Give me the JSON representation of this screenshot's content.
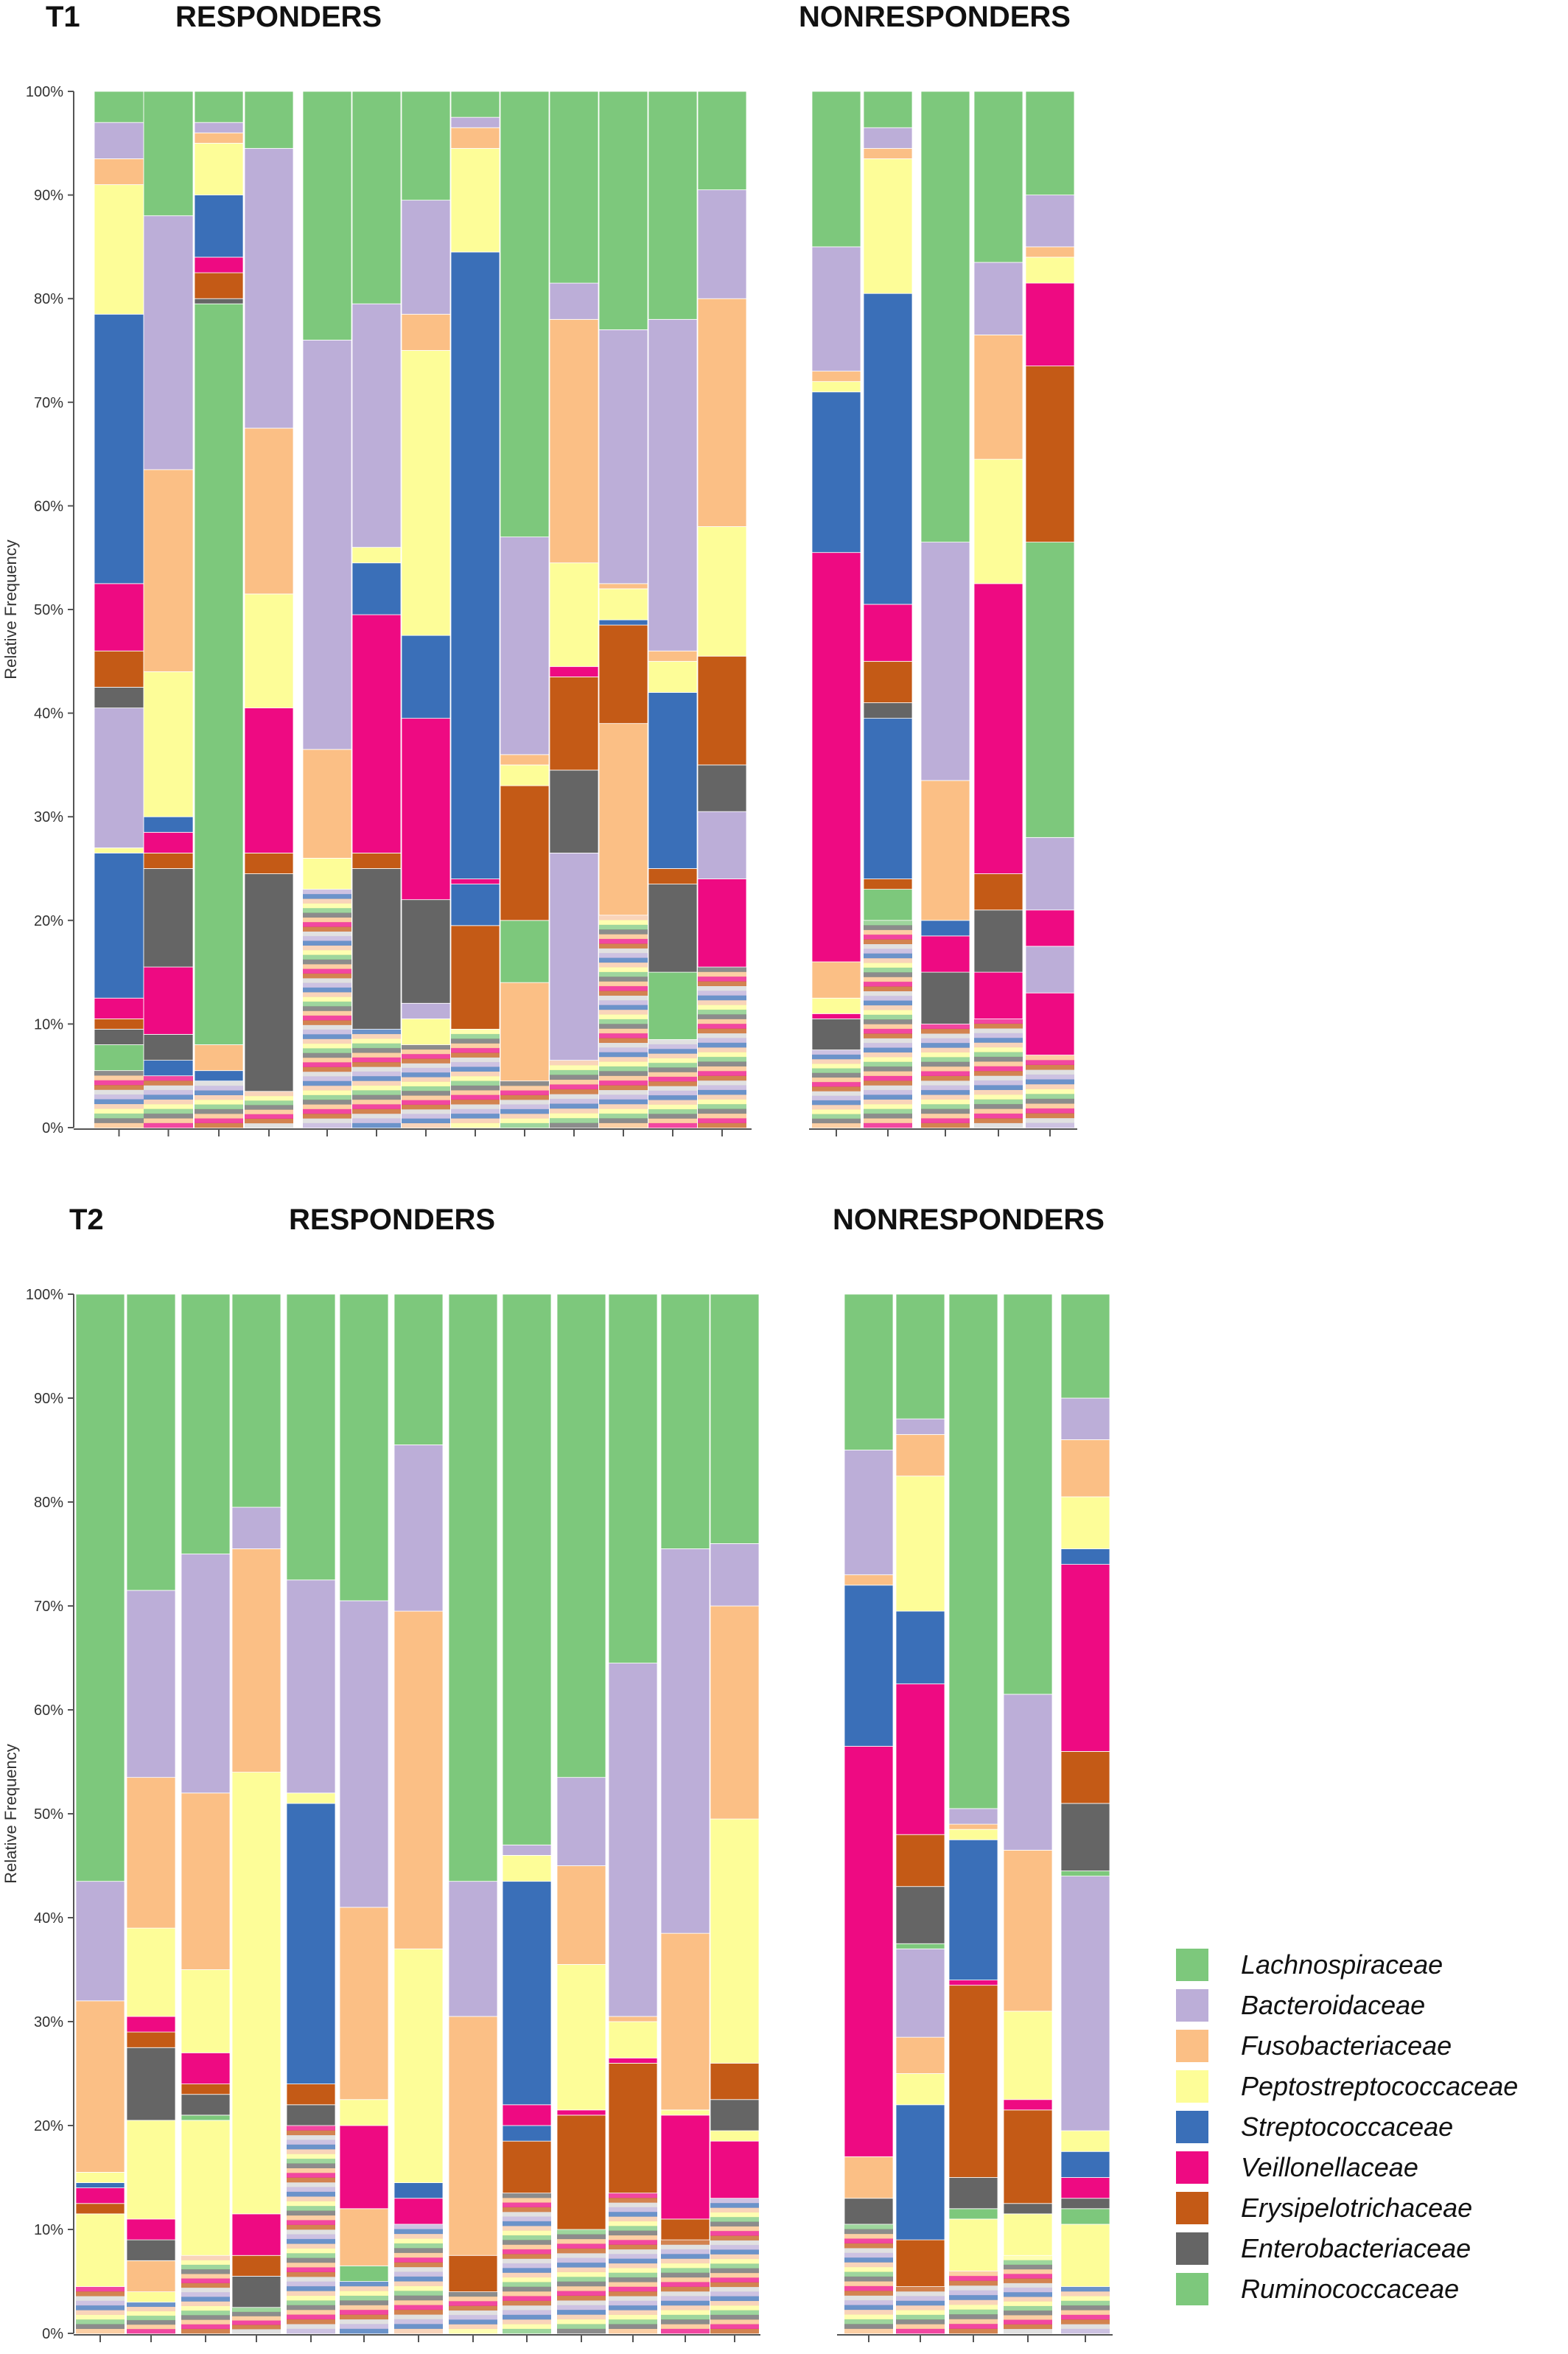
{
  "figure": {
    "panels": [
      {
        "id": "T1",
        "time_label": "T1",
        "group_labels": [
          "RESPONDERS",
          "NONRESPONDERS"
        ],
        "ylabel": "Relative Frequency",
        "yticks": [
          "0%",
          "10%",
          "20%",
          "30%",
          "40%",
          "50%",
          "60%",
          "70%",
          "80%",
          "90%",
          "100%"
        ]
      },
      {
        "id": "T2",
        "time_label": "T2",
        "group_labels": [
          "RESPONDERS",
          "NONRESPONDERS"
        ],
        "ylabel": "Relative Frequency",
        "yticks": [
          "0%",
          "10%",
          "20%",
          "30%",
          "40%",
          "50%",
          "60%",
          "70%",
          "80%",
          "90%",
          "100%"
        ]
      }
    ]
  },
  "legend": {
    "items": [
      {
        "label": "Lachnospiraceae",
        "color": "#7dc87c"
      },
      {
        "label": "Bacteroidaceae",
        "color": "#bcaed8"
      },
      {
        "label": "Fusobacteriaceae",
        "color": "#fbbf85"
      },
      {
        "label": "Peptostreptococcaceae",
        "color": "#fdfd98"
      },
      {
        "label": "Streptococcaceae",
        "color": "#3a6fb8"
      },
      {
        "label": "Veillonellaceae",
        "color": "#ee0a82"
      },
      {
        "label": "Erysipelotrichaceae",
        "color": "#c45a16"
      },
      {
        "label": "Enterobacteriaceae",
        "color": "#656565"
      },
      {
        "label": "Ruminococcaceae",
        "color": "#7dc87c"
      }
    ]
  },
  "chart_data": [
    {
      "type": "bar",
      "stacked": true,
      "timepoint": "T1",
      "ylabel": "Relative Frequency",
      "ylim": [
        0,
        100
      ],
      "series_order": [
        "Lachnospiraceae",
        "Bacteroidaceae",
        "Fusobacteriaceae",
        "Peptostreptococcaceae",
        "Streptococcaceae",
        "Veillonellaceae",
        "Erysipelotrichaceae",
        "Enterobacteriaceae",
        "Ruminococcaceae"
      ],
      "groups": [
        {
          "name": "RESPONDERS",
          "samples": [
            {
              "Ruminococcaceae": 2.5,
              "Enterobacteriaceae": 1.5,
              "Erysipelotrichaceae": 1,
              "Veillonellaceae": 2,
              "Streptococcaceae": 14,
              "Peptostreptococcaceae": 0.5,
              "Bacteroidaceae": 13.5,
              "Enterobacteriaceae_2": 2,
              "Erysipelotrichaceae_2": 3.5,
              "Veillonellaceae_2": 6.5,
              "Streptococcaceae_2": 26,
              "Peptostreptococcaceae_2": 12.5,
              "Fusobacteriaceae": 2.5,
              "Bacteroidaceae_2": 3.5,
              "Lachnospiraceae": 3
            },
            {
              "Streptococcaceae": 1.5,
              "Enterobacteriaceae": 2.5,
              "Veillonellaceae": 6.5,
              "Enterobacteriaceae_2": 9.5,
              "Erysipelotrichaceae": 1.5,
              "Veillonellaceae_2": 2,
              "Streptococcaceae_2": 1.5,
              "Peptostreptococcaceae": 14,
              "Fusobacteriaceae": 19.5,
              "Bacteroidaceae": 24.5,
              "Lachnospiraceae": 12
            },
            {
              "Streptococcaceae": 1,
              "Fusobacteriaceae": 2.5,
              "Lachnospiraceae": 71.5,
              "Enterobacteriaceae": 0.5,
              "Erysipelotrichaceae": 2.5,
              "Veillonellaceae": 1.5,
              "Streptococcaceae_2": 6,
              "Peptostreptococcaceae": 5,
              "Fusobacteriaceae_2": 1,
              "Bacteroidaceae": 1,
              "Lachnospiraceae_2": 3
            },
            {
              "Enterobacteriaceae": 21,
              "Erysipelotrichaceae": 2,
              "Veillonellaceae": 14,
              "Peptostreptococcaceae": 11,
              "Fusobacteriaceae": 16,
              "Bacteroidaceae": 27,
              "Lachnospiraceae": 5.5
            },
            {
              "Peptostreptococcaceae": 3,
              "Fusobacteriaceae": 10.5,
              "Bacteroidaceae": 39.5,
              "Lachnospiraceae": 24
            },
            {
              "Enterobacteriaceae": 15.5,
              "Erysipelotrichaceae": 1.5,
              "Veillonellaceae": 23,
              "Streptococcaceae": 5,
              "Peptostreptococcaceae": 1.5,
              "Bacteroidaceae": 23.5,
              "Lachnospiraceae": 20.5
            },
            {
              "Peptostreptococcaceae": 2.5,
              "Bacteroidaceae": 1.5,
              "Enterobacteriaceae": 10,
              "Veillonellaceae": 17.5,
              "Streptococcaceae": 8,
              "Peptostreptococcaceae_2": 27.5,
              "Fusobacteriaceae": 3.5,
              "Bacteroidaceae_2": 11,
              "Lachnospiraceae": 10.5
            },
            {
              "Erysipelotrichaceae": 10,
              "Streptococcaceae": 4,
              "Veillonellaceae": 0.5,
              "Streptococcaceae_2": 60.5,
              "Peptostreptococcaceae": 10,
              "Fusobacteriaceae": 2,
              "Bacteroidaceae": 1,
              "Lachnospiraceae": 2.5
            },
            {
              "Fusobacteriaceae": 9.5,
              "Ruminococcaceae": 6,
              "Erysipelotrichaceae": 13,
              "Peptostreptococcaceae": 2,
              "Fusobacteriaceae_2": 1,
              "Bacteroidaceae": 21,
              "Lachnospiraceae": 43
            },
            {
              "Bacteroidaceae": 20,
              "Enterobacteriaceae": 8,
              "Erysipelotrichaceae": 9,
              "Veillonellaceae": 1,
              "Peptostreptococcaceae": 10,
              "Fusobacteriaceae": 23.5,
              "Bacteroidaceae_2": 3.5,
              "Lachnospiraceae": 18.5
            },
            {
              "Fusobacteriaceae": 18.5,
              "Erysipelotrichaceae": 9.5,
              "Streptococcaceae": 0.5,
              "Peptostreptococcaceae": 3,
              "Fusobacteriaceae_2": 0.5,
              "Bacteroidaceae": 24.5,
              "Lachnospiraceae": 23
            },
            {
              "Ruminococcaceae": 6.5,
              "Enterobacteriaceae": 8.5,
              "Erysipelotrichaceae": 1.5,
              "Streptococcaceae": 17,
              "Peptostreptococcaceae": 3,
              "Fusobacteriaceae": 1,
              "Bacteroidaceae": 32,
              "Lachnospiraceae": 22
            },
            {
              "Veillonellaceae": 8.5,
              "Bacteroidaceae": 6.5,
              "Enterobacteriaceae": 4.5,
              "Erysipelotrichaceae": 10.5,
              "Peptostreptococcaceae": 12.5,
              "Fusobacteriaceae": 22,
              "Bacteroidaceae_2": 10.5,
              "Lachnospiraceae": 9.5
            }
          ]
        },
        {
          "name": "NONRESPONDERS",
          "samples": [
            {
              "Enterobacteriaceae": 3,
              "Veillonellaceae": 0.5,
              "Peptostreptococcaceae": 1.5,
              "Fusobacteriaceae": 3.5,
              "Veillonellaceae_2": 39.5,
              "Streptococcaceae": 15.5,
              "Peptostreptococcaceae_2": 1,
              "Fusobacteriaceae_2": 1,
              "Bacteroidaceae": 12,
              "Lachnospiraceae": 15
            },
            {
              "Ruminococcaceae": 3,
              "Erysipelotrichaceae": 1,
              "Streptococcaceae": 15.5,
              "Enterobacteriaceae": 1.5,
              "Erysipelotrichaceae_2": 4,
              "Veillonellaceae": 5.5,
              "Streptococcaceae_2": 30,
              "Peptostreptococcaceae": 13,
              "Fusobacteriaceae": 1,
              "Bacteroidaceae": 2,
              "Lachnospiraceae": 3.5
            },
            {
              "Enterobacteriaceae": 5,
              "Veillonellaceae": 3.5,
              "Streptococcaceae": 1.5,
              "Fusobacteriaceae": 13.5,
              "Bacteroidaceae": 23,
              "Lachnospiraceae": 43.5
            },
            {
              "Veillonellaceae": 4.5,
              "Enterobacteriaceae": 6,
              "Erysipelotrichaceae": 3.5,
              "Veillonellaceae_2": 28,
              "Peptostreptococcaceae": 12,
              "Fusobacteriaceae": 12,
              "Bacteroidaceae": 7,
              "Lachnospiraceae": 16.5
            },
            {
              "Veillonellaceae": 6,
              "Bacteroidaceae": 4.5,
              "Veillonellaceae_2": 3.5,
              "Bacteroidaceae_2": 7,
              "Ruminococcaceae": 28.5,
              "Erysipelotrichaceae": 17,
              "Veillonellaceae_2b": 8,
              "Peptostreptococcaceae": 2.5,
              "Fusobacteriaceae": 1,
              "Bacteroidaceae_3": 5,
              "Lachnospiraceae": 10
            }
          ]
        }
      ]
    },
    {
      "type": "bar",
      "stacked": true,
      "timepoint": "T2",
      "ylabel": "Relative Frequency",
      "ylim": [
        0,
        100
      ],
      "series_order": [
        "Lachnospiraceae",
        "Bacteroidaceae",
        "Fusobacteriaceae",
        "Peptostreptococcaceae",
        "Streptococcaceae",
        "Veillonellaceae",
        "Erysipelotrichaceae",
        "Enterobacteriaceae",
        "Ruminococcaceae"
      ],
      "groups": [
        {
          "name": "RESPONDERS",
          "samples": [
            {
              "Peptostreptococcaceae": 7,
              "Erysipelotrichaceae": 1,
              "Veillonellaceae": 1.5,
              "Streptococcaceae": 0.5,
              "Peptostreptococcaceae_2": 1,
              "Fusobacteriaceae": 16.5,
              "Bacteroidaceae": 11.5,
              "Lachnospiraceae": 56.5
            },
            {
              "Peptostreptococcaceae": 1,
              "Fusobacteriaceae": 3,
              "Enterobacteriaceae": 2,
              "Veillonellaceae": 2,
              "Peptostreptococcaceae_2": 9.5,
              "Enterobacteriaceae_2": 7,
              "Erysipelotrichaceae": 1.5,
              "Veillonellaceae_2": 1.5,
              "Peptostreptococcaceae_2b": 8.5,
              "Fusobacteriaceae_2": 14.5,
              "Bacteroidaceae": 18,
              "Lachnospiraceae": 28.5
            },
            {
              "Peptostreptococcaceae": 13,
              "Ruminococcaceae": 0.5,
              "Enterobacteriaceae": 2,
              "Erysipelotrichaceae": 1,
              "Veillonellaceae": 3,
              "Peptostreptococcaceae_2": 8,
              "Fusobacteriaceae": 17,
              "Bacteroidaceae": 23,
              "Lachnospiraceae": 25
            },
            {
              "Enterobacteriaceae": 3,
              "Erysipelotrichaceae": 2,
              "Veillonellaceae": 4,
              "Peptostreptococcaceae": 42.5,
              "Fusobacteriaceae": 21.5,
              "Bacteroidaceae": 4,
              "Lachnospiraceae": 20.5
            },
            {
              "Enterobacteriaceae": 2,
              "Erysipelotrichaceae": 2,
              "Streptococcaceae": 27,
              "Peptostreptococcaceae": 1,
              "Bacteroidaceae": 20.5,
              "Lachnospiraceae": 27.5
            },
            {
              "Ruminococcaceae": 1.5,
              "Fusobacteriaceae": 5.5,
              "Veillonellaceae": 8,
              "Peptostreptococcaceae": 2.5,
              "Fusobacteriaceae_2": 18.5,
              "Bacteroidaceae": 29.5,
              "Lachnospiraceae": 29.5
            },
            {
              "Veillonellaceae": 2.5,
              "Streptococcaceae": 1.5,
              "Peptostreptococcaceae": 22.5,
              "Fusobacteriaceae": 32.5,
              "Bacteroidaceae": 16,
              "Lachnospiraceae": 14.5
            },
            {
              "Erysipelotrichaceae": 3.5,
              "Fusobacteriaceae": 23,
              "Bacteroidaceae": 13,
              "Lachnospiraceae": 56.5
            },
            {
              "Erysipelotrichaceae": 5,
              "Streptococcaceae": 1.5,
              "Veillonellaceae": 2,
              "Streptococcaceae_2": 21.5,
              "Peptostreptococcaceae": 2.5,
              "Bacteroidaceae": 1,
              "Lachnospiraceae": 53
            },
            {
              "Erysipelotrichaceae": 11,
              "Veillonellaceae": 0.5,
              "Peptostreptococcaceae": 14,
              "Fusobacteriaceae": 9.5,
              "Bacteroidaceae": 8.5,
              "Lachnospiraceae": 46.5
            },
            {
              "Erysipelotrichaceae": 12.5,
              "Veillonellaceae": 0.5,
              "Peptostreptococcaceae": 3.5,
              "Fusobacteriaceae": 0.5,
              "Bacteroidaceae": 34,
              "Lachnospiraceae": 35.5
            },
            {
              "Erysipelotrichaceae": 2,
              "Veillonellaceae": 10,
              "Peptostreptococcaceae": 0.5,
              "Fusobacteriaceae": 17,
              "Bacteroidaceae": 37,
              "Lachnospiraceae": 24.5
            },
            {
              "Veillonellaceae": 5.5,
              "Peptostreptococcaceae": 1,
              "Enterobacteriaceae": 3,
              "Erysipelotrichaceae": 3.5,
              "Peptostreptococcaceae_2": 23.5,
              "Fusobacteriaceae": 20.5,
              "Bacteroidaceae": 6,
              "Lachnospiraceae": 24
            }
          ]
        },
        {
          "name": "NONRESPONDERS",
          "samples": [
            {
              "Enterobacteriaceae": 2.5,
              "Fusobacteriaceae": 4,
              "Veillonellaceae": 39.5,
              "Streptococcaceae": 15.5,
              "Fusobacteriaceae_2": 1,
              "Bacteroidaceae": 12,
              "Lachnospiraceae": 15
            },
            {
              "Erysipelotrichaceae": 4.5,
              "Streptococcaceae": 13,
              "Peptostreptococcaceae": 3,
              "Fusobacteriaceae": 3.5,
              "Bacteroidaceae": 8.5,
              "Ruminococcaceae": 0.5,
              "Enterobacteriaceae": 5.5,
              "Erysipelotrichaceae_2": 5,
              "Veillonellaceae": 14.5,
              "Streptococcaceae_2": 7,
              "Peptostreptococcaceae_2": 13,
              "Fusobacteriaceae_2": 4,
              "Bacteroidaceae_2": 1.5,
              "Lachnospiraceae": 12
            },
            {
              "Peptostreptococcaceae": 5,
              "Ruminococcaceae": 1,
              "Enterobacteriaceae": 3,
              "Erysipelotrichaceae": 18.5,
              "Veillonellaceae": 0.5,
              "Streptococcaceae": 13.5,
              "Peptostreptococcaceae_2": 1,
              "Fusobacteriaceae": 0.5,
              "Bacteroidaceae": 1.5,
              "Lachnospiraceae": 49.5
            },
            {
              "Peptostreptococcaceae": 4,
              "Enterobacteriaceae": 1,
              "Erysipelotrichaceae": 9,
              "Veillonellaceae": 1,
              "Peptostreptococcaceae_2": 8.5,
              "Fusobacteriaceae": 15.5,
              "Bacteroidaceae": 15,
              "Lachnospiraceae": 38.5
            },
            {
              "Peptostreptococcaceae": 6,
              "Ruminococcaceae": 1.5,
              "Enterobacteriaceae": 1,
              "Veillonellaceae": 2,
              "Streptococcaceae": 2.5,
              "Peptostreptococcaceae_2": 2,
              "Bacteroidaceae": 24.5,
              "Ruminococcaceae_2": 0.5,
              "Enterobacteriaceae_2": 6.5,
              "Erysipelotrichaceae": 5,
              "Veillonellaceae_2": 18,
              "Streptococcaceae_2": 1.5,
              "Peptostreptococcaceae_2b": 5,
              "Fusobacteriaceae": 5.5,
              "Bacteroidaceae_2": 4,
              "Lachnospiraceae": 10
            }
          ]
        }
      ]
    }
  ]
}
